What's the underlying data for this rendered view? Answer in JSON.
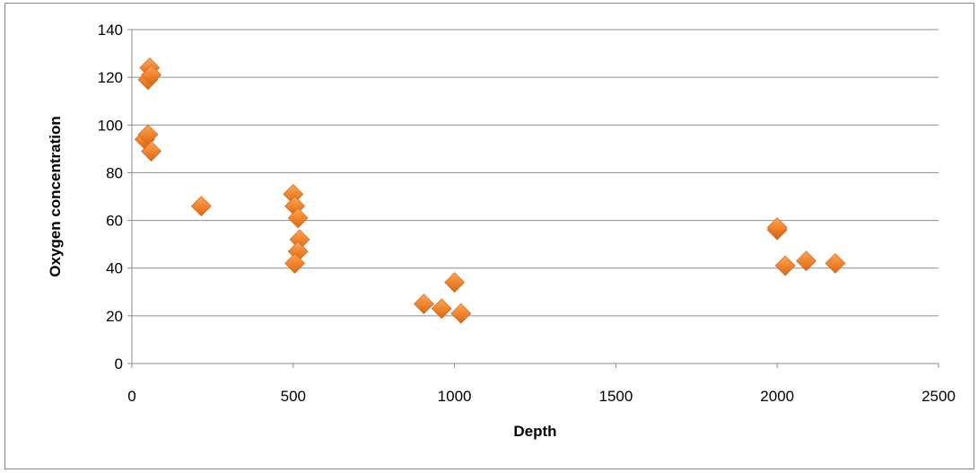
{
  "chart_data": {
    "type": "scatter",
    "title": "",
    "xlabel": "Depth",
    "ylabel": "Oxygen concentration",
    "xlim": [
      0,
      2500
    ],
    "ylim": [
      0,
      140
    ],
    "xticks": [
      0,
      500,
      1000,
      1500,
      2000,
      2500
    ],
    "yticks": [
      0,
      20,
      40,
      60,
      80,
      100,
      120,
      140
    ],
    "grid": "horizontal",
    "legend": "none",
    "marker": "diamond",
    "marker_color": "#f0822a",
    "series": [
      {
        "points": [
          [
            55,
            124
          ],
          [
            50,
            119
          ],
          [
            60,
            121
          ],
          [
            40,
            94
          ],
          [
            50,
            96
          ],
          [
            60,
            89
          ],
          [
            215,
            66
          ],
          [
            500,
            71
          ],
          [
            505,
            66
          ],
          [
            515,
            61
          ],
          [
            520,
            52
          ],
          [
            515,
            47
          ],
          [
            505,
            42
          ],
          [
            905,
            25
          ],
          [
            960,
            23
          ],
          [
            1000,
            34
          ],
          [
            1020,
            21
          ],
          [
            2000,
            56
          ],
          [
            2000,
            57
          ],
          [
            2025,
            41
          ],
          [
            2090,
            43
          ],
          [
            2180,
            42
          ]
        ]
      }
    ]
  }
}
